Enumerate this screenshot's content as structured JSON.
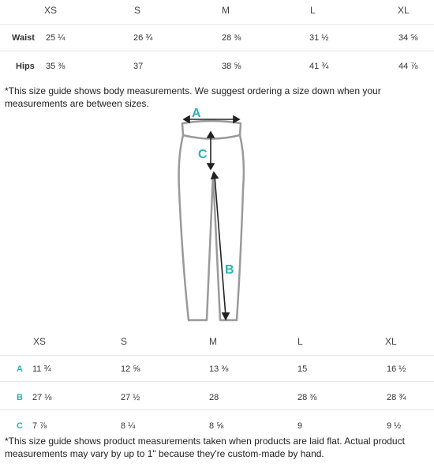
{
  "body_table": {
    "sizes": [
      "XS",
      "S",
      "M",
      "L",
      "XL"
    ],
    "rows": [
      {
        "label": "Waist",
        "values": [
          "25 ¼",
          "26 ¾",
          "28 ⅜",
          "31 ½",
          "34 ⅝"
        ]
      },
      {
        "label": "Hips",
        "values": [
          "35 ⅜",
          "37",
          "38 ⅝",
          "41 ¾",
          "44 ⅞"
        ]
      }
    ],
    "note": "*This size guide shows body measurements. We suggest ordering a size down when your measurements are between sizes."
  },
  "diagram": {
    "labels": {
      "a": "A",
      "b": "B",
      "c": "C"
    },
    "accent_color": "#28b3b3"
  },
  "product_table": {
    "sizes": [
      "XS",
      "S",
      "M",
      "L",
      "XL"
    ],
    "rows": [
      {
        "label": "A",
        "values": [
          "11 ¾",
          "12 ⅝",
          "13 ⅜",
          "15",
          "16 ½"
        ]
      },
      {
        "label": "B",
        "values": [
          "27 ⅛",
          "27 ½",
          "28",
          "28 ⅜",
          "28 ¾"
        ]
      },
      {
        "label": "C",
        "values": [
          "7 ⅞",
          "8 ¼",
          "8 ⅝",
          "9",
          "9 ½"
        ]
      }
    ],
    "note": "*This size guide shows product measurements taken when products are laid flat. Actual product measurements may vary by up to 1\" because they're custom-made by hand."
  }
}
